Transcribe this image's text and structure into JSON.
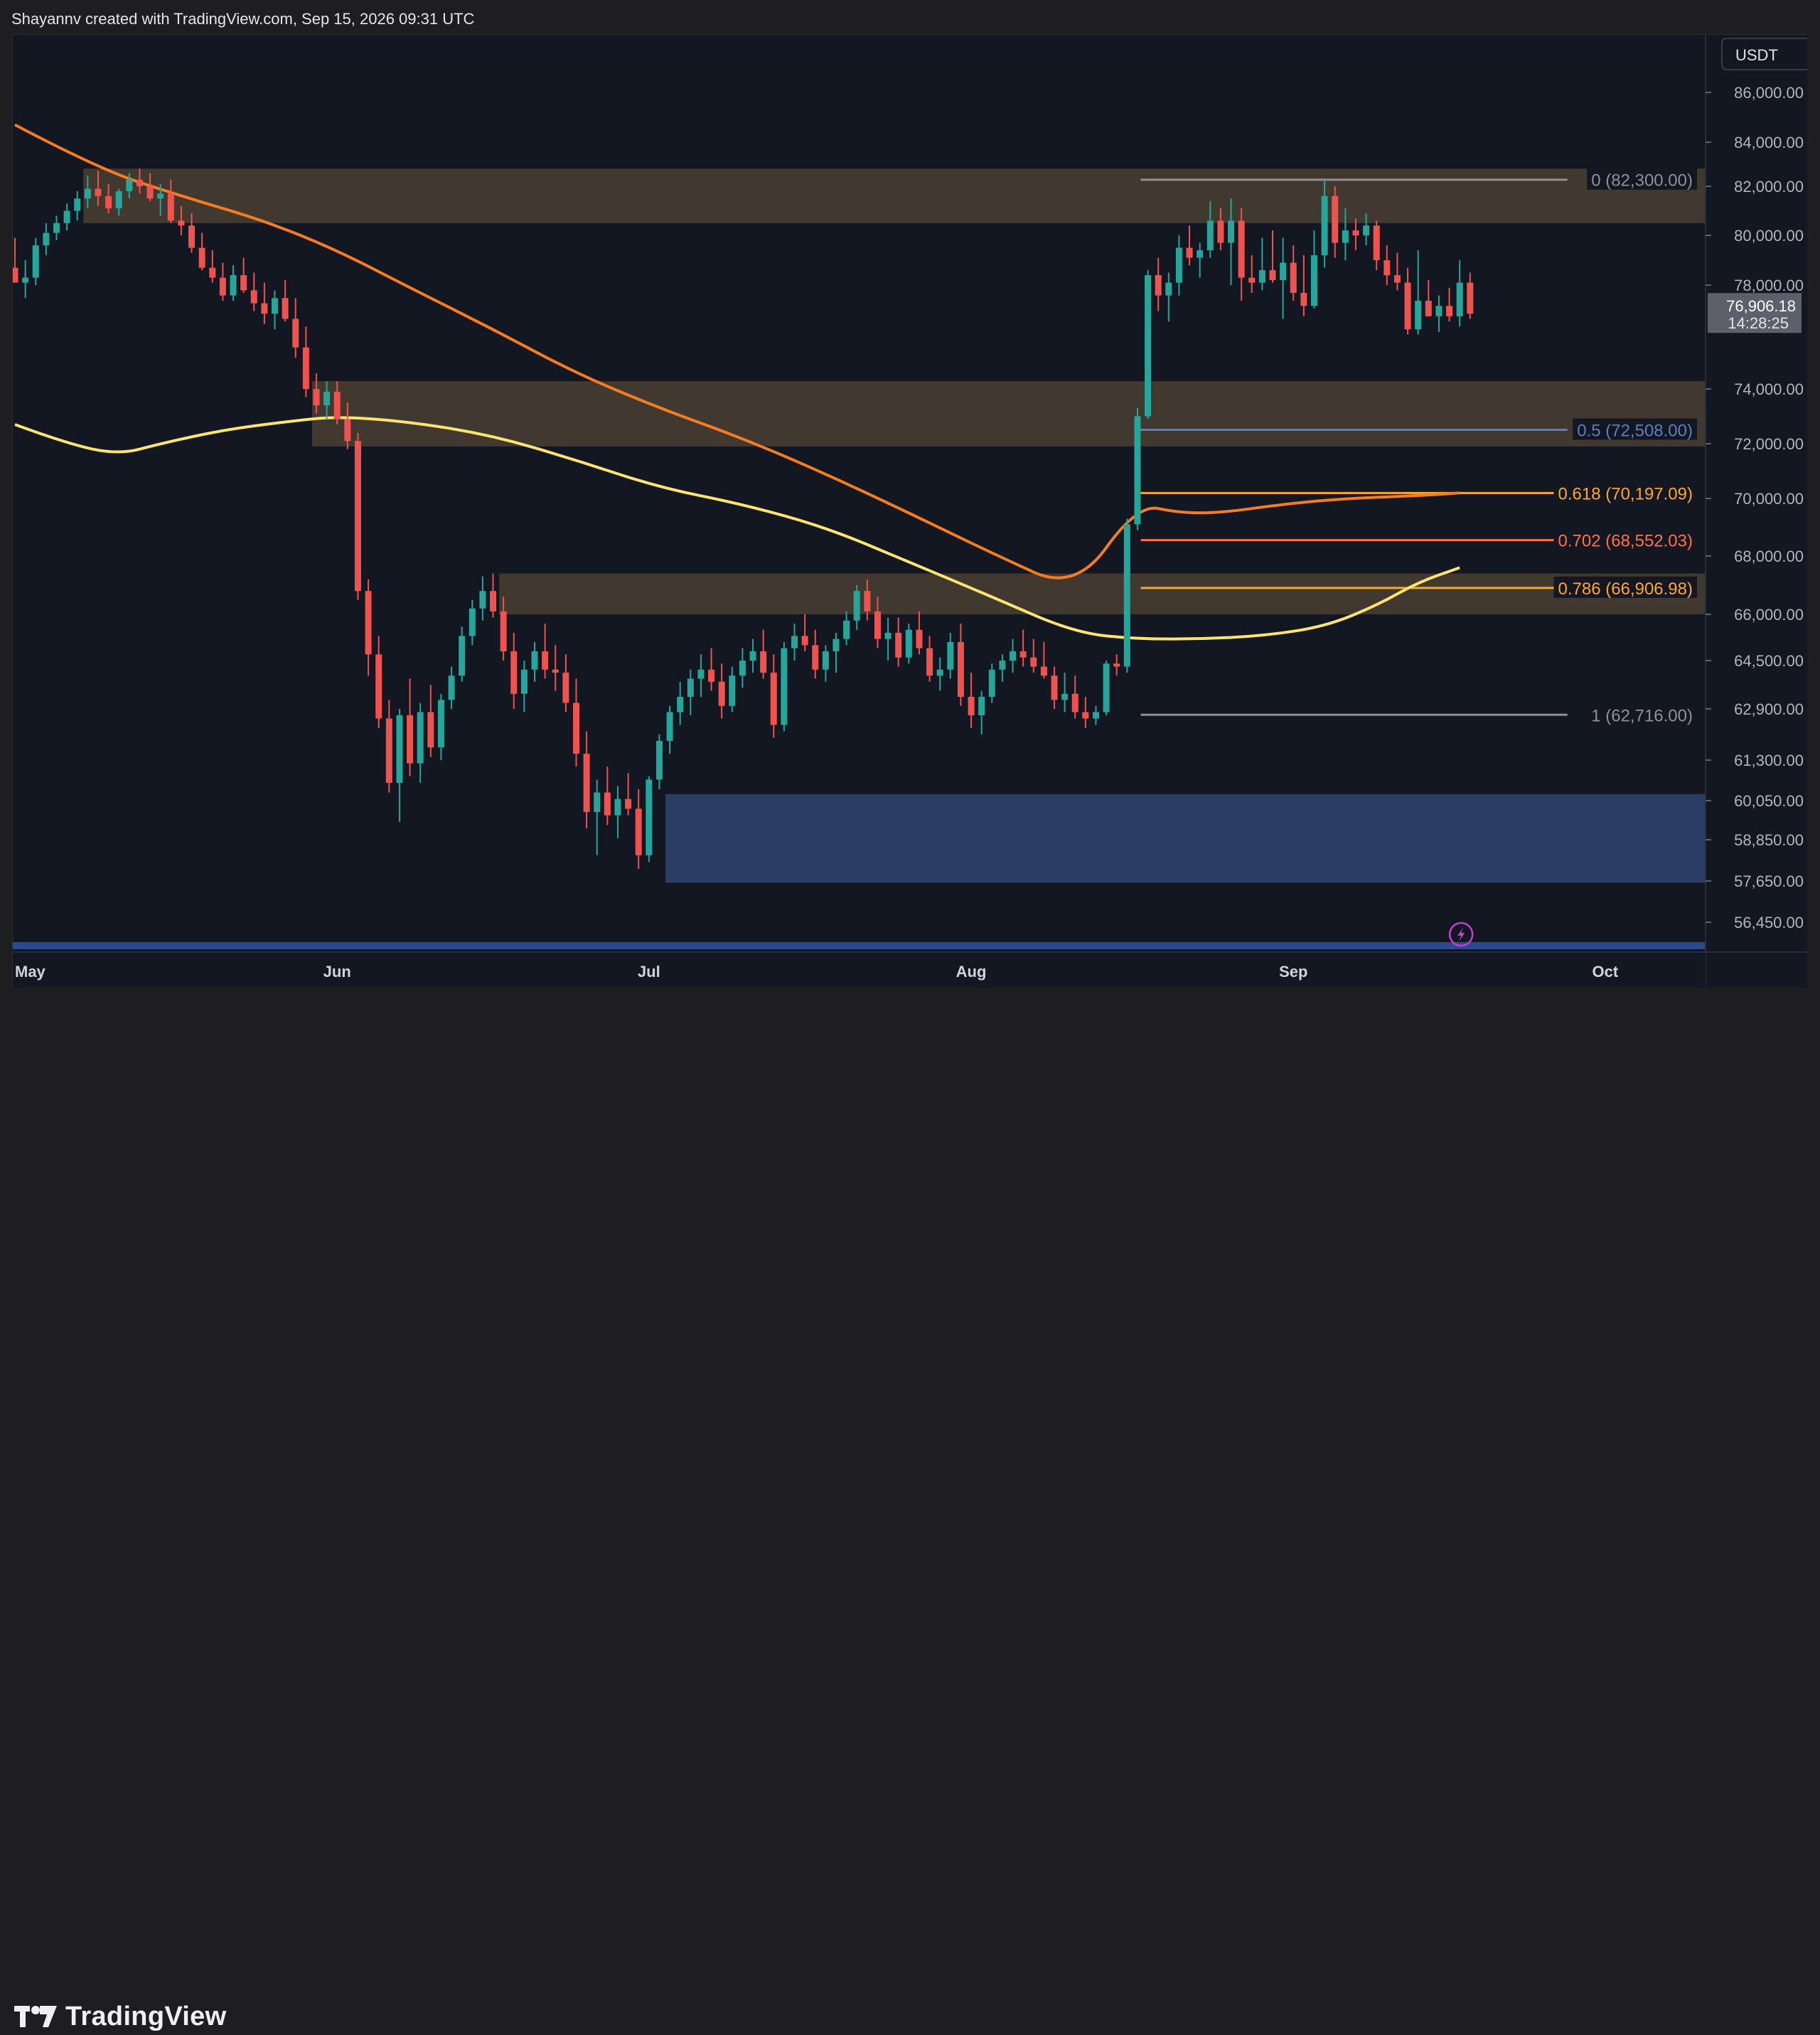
{
  "header": {
    "attribution": "Shayannv created with TradingView.com, Sep 15, 2026 09:31 UTC"
  },
  "footer": {
    "brand": "TradingView",
    "logo_icon": "tradingview-logo-icon"
  },
  "colors": {
    "background": "#131722",
    "page": "#1e1e20",
    "bull": "#26a69a",
    "bear": "#ef5350",
    "zone_supply": "#4a3f33",
    "zone_demand": "#2b3f66",
    "ema_orange": "#f57c1f",
    "ma_yellow": "#ffe470",
    "fib_grey": "#8f9099",
    "fib_blue": "#5b7fbe",
    "fib_orange": "#ffa726",
    "fib_deep_orange": "#ff7043",
    "accent_purple": "#c040d0"
  },
  "chart_data": {
    "type": "candlestick",
    "currency": "USDT",
    "last_price": "76,906.18",
    "countdown": "14:28:25",
    "y_ticks": [
      {
        "label": "86,000.00",
        "v": 86000
      },
      {
        "label": "84,000.00",
        "v": 84000
      },
      {
        "label": "82,000.00",
        "v": 82000
      },
      {
        "label": "80,000.00",
        "v": 80000
      },
      {
        "label": "78,000.00",
        "v": 78000
      },
      {
        "label": "74,000.00",
        "v": 74000
      },
      {
        "label": "72,000.00",
        "v": 72000
      },
      {
        "label": "70,000.00",
        "v": 70000
      },
      {
        "label": "68,000.00",
        "v": 68000
      },
      {
        "label": "66,000.00",
        "v": 66000
      },
      {
        "label": "64,500.00",
        "v": 64500
      },
      {
        "label": "62,900.00",
        "v": 62900
      },
      {
        "label": "61,300.00",
        "v": 61300
      },
      {
        "label": "60,050.00",
        "v": 60050
      },
      {
        "label": "58,850.00",
        "v": 58850
      },
      {
        "label": "57,650.00",
        "v": 57650
      },
      {
        "label": "56,450.00",
        "v": 56450
      }
    ],
    "x_ticks": [
      {
        "label": "May",
        "day": 0
      },
      {
        "label": "Jun",
        "day": 31
      },
      {
        "label": "Jul",
        "day": 61
      },
      {
        "label": "Aug",
        "day": 92
      },
      {
        "label": "Sep",
        "day": 123
      },
      {
        "label": "Oct",
        "day": 153
      }
    ],
    "zones": [
      {
        "name": "supply-zone-top",
        "x0": 7,
        "x1": 162,
        "y0": 80500,
        "y1": 82800,
        "kind": "supply"
      },
      {
        "name": "supply-zone-mid",
        "x0": 29,
        "x1": 162,
        "y0": 71900,
        "y1": 74300,
        "kind": "supply"
      },
      {
        "name": "supply-zone-low",
        "x0": 47,
        "x1": 162,
        "y0": 66000,
        "y1": 67400,
        "kind": "supply"
      },
      {
        "name": "demand-zone",
        "x0": 63,
        "x1": 162,
        "y0": 57600,
        "y1": 60250,
        "kind": "demand"
      }
    ],
    "fib_levels": [
      {
        "label": "0 (82,300.00)",
        "v": 82300,
        "color": "#8f9099"
      },
      {
        "label": "0.5 (72,508.00)",
        "v": 72508,
        "color": "#5b7fbe"
      },
      {
        "label": "0.618 (70,197.09)",
        "v": 70197,
        "color": "#ffa726"
      },
      {
        "label": "0.702 (68,552.03)",
        "v": 68552,
        "color": "#ff7043"
      },
      {
        "label": "0.786 (66,906.98)",
        "v": 66907,
        "color": "#ffa726"
      },
      {
        "label": "1 (62,716.00)",
        "v": 62716,
        "color": "#8f9099"
      }
    ],
    "fib_range": {
      "x0": 109,
      "x1": 148
    },
    "ma_orange": [
      [
        0,
        84700
      ],
      [
        8,
        82800
      ],
      [
        16,
        81600
      ],
      [
        24,
        80600
      ],
      [
        31,
        79400
      ],
      [
        38,
        77900
      ],
      [
        46,
        76300
      ],
      [
        54,
        74600
      ],
      [
        62,
        73300
      ],
      [
        70,
        72200
      ],
      [
        78,
        70900
      ],
      [
        86,
        69500
      ],
      [
        94,
        68100
      ],
      [
        102,
        66800
      ],
      [
        108,
        69800
      ],
      [
        112,
        69500
      ],
      [
        116,
        69500
      ],
      [
        122,
        69800
      ],
      [
        128,
        70000
      ],
      [
        135,
        70100
      ],
      [
        139,
        70200
      ]
    ],
    "ma_yellow": [
      [
        0,
        72700
      ],
      [
        5,
        72000
      ],
      [
        10,
        71600
      ],
      [
        14,
        72000
      ],
      [
        20,
        72500
      ],
      [
        26,
        72800
      ],
      [
        31,
        73000
      ],
      [
        38,
        72800
      ],
      [
        46,
        72300
      ],
      [
        54,
        71400
      ],
      [
        62,
        70400
      ],
      [
        70,
        69800
      ],
      [
        78,
        69000
      ],
      [
        86,
        67800
      ],
      [
        94,
        66600
      ],
      [
        102,
        65400
      ],
      [
        108,
        65200
      ],
      [
        114,
        65200
      ],
      [
        120,
        65300
      ],
      [
        126,
        65600
      ],
      [
        131,
        66300
      ],
      [
        135,
        67100
      ],
      [
        139,
        67600
      ]
    ],
    "candles": [
      [
        0,
        78700,
        79900,
        78300,
        78100
      ],
      [
        1,
        78100,
        79000,
        77500,
        78300
      ],
      [
        2,
        78300,
        79900,
        78000,
        79600
      ],
      [
        3,
        79600,
        80500,
        79200,
        80100
      ],
      [
        4,
        80100,
        80800,
        79800,
        80500
      ],
      [
        5,
        80500,
        81300,
        80200,
        81000
      ],
      [
        6,
        81000,
        81800,
        80600,
        81500
      ],
      [
        7,
        81500,
        82500,
        81100,
        81900
      ],
      [
        8,
        81900,
        82700,
        81200,
        81600
      ],
      [
        9,
        81600,
        82100,
        80900,
        81100
      ],
      [
        10,
        81100,
        81900,
        80800,
        81800
      ],
      [
        11,
        81800,
        82600,
        81500,
        82300
      ],
      [
        12,
        82300,
        82800,
        81700,
        82000
      ],
      [
        13,
        82000,
        82600,
        81400,
        81500
      ],
      [
        14,
        81500,
        82100,
        80800,
        81700
      ],
      [
        15,
        81700,
        82300,
        80500,
        80600
      ],
      [
        16,
        80600,
        81200,
        80000,
        80400
      ],
      [
        17,
        80400,
        80900,
        79300,
        79500
      ],
      [
        18,
        79500,
        80100,
        78600,
        78700
      ],
      [
        19,
        78700,
        79400,
        78100,
        78300
      ],
      [
        20,
        78300,
        78900,
        77400,
        77600
      ],
      [
        21,
        77600,
        78800,
        77400,
        78400
      ],
      [
        22,
        78400,
        79100,
        77700,
        77800
      ],
      [
        23,
        77800,
        78500,
        77000,
        77300
      ],
      [
        24,
        77300,
        78100,
        76500,
        76900
      ],
      [
        25,
        76900,
        77800,
        76300,
        77500
      ],
      [
        26,
        77500,
        78200,
        76600,
        76700
      ],
      [
        27,
        76700,
        77500,
        75200,
        75600
      ],
      [
        28,
        75600,
        76400,
        73700,
        74000
      ],
      [
        29,
        74000,
        74600,
        73100,
        73400
      ],
      [
        30,
        73400,
        74300,
        72900,
        73900
      ],
      [
        31,
        73900,
        74300,
        72700,
        72900
      ],
      [
        32,
        72900,
        73500,
        71800,
        72100
      ],
      [
        33,
        72100,
        72400,
        66500,
        66800
      ],
      [
        34,
        66800,
        67200,
        64000,
        64700
      ],
      [
        35,
        64700,
        65300,
        62300,
        62600
      ],
      [
        36,
        62600,
        63200,
        60300,
        60600
      ],
      [
        37,
        60600,
        62900,
        59400,
        62700
      ],
      [
        38,
        62700,
        63900,
        60800,
        61200
      ],
      [
        39,
        61200,
        63100,
        60600,
        62800
      ],
      [
        40,
        62800,
        63700,
        61400,
        61700
      ],
      [
        41,
        61700,
        63400,
        61300,
        63200
      ],
      [
        42,
        63200,
        64300,
        62900,
        64000
      ],
      [
        43,
        64000,
        65600,
        63800,
        65300
      ],
      [
        44,
        65300,
        66500,
        65000,
        66200
      ],
      [
        45,
        66200,
        67300,
        65800,
        66800
      ],
      [
        46,
        66800,
        67400,
        65900,
        66100
      ],
      [
        47,
        66100,
        66600,
        64500,
        64800
      ],
      [
        48,
        64800,
        65400,
        62900,
        63400
      ],
      [
        49,
        63400,
        64500,
        62800,
        64200
      ],
      [
        50,
        64200,
        65100,
        63800,
        64800
      ],
      [
        51,
        64800,
        65700,
        63900,
        64200
      ],
      [
        52,
        64200,
        65000,
        63500,
        64100
      ],
      [
        53,
        64100,
        64700,
        62800,
        63100
      ],
      [
        54,
        63100,
        63900,
        61100,
        61500
      ],
      [
        55,
        61500,
        62200,
        59200,
        59700
      ],
      [
        56,
        59700,
        60700,
        58400,
        60300
      ],
      [
        57,
        60300,
        61100,
        59300,
        59600
      ],
      [
        58,
        59600,
        60500,
        58900,
        60100
      ],
      [
        59,
        60100,
        60900,
        59600,
        59800
      ],
      [
        60,
        59800,
        60400,
        58000,
        58400
      ],
      [
        61,
        58400,
        60800,
        58200,
        60700
      ],
      [
        62,
        60700,
        62100,
        60400,
        61900
      ],
      [
        63,
        61900,
        63000,
        61500,
        62800
      ],
      [
        64,
        62800,
        63800,
        62400,
        63300
      ],
      [
        65,
        63300,
        64200,
        62700,
        63900
      ],
      [
        66,
        63900,
        64700,
        63300,
        64200
      ],
      [
        67,
        64200,
        64900,
        63500,
        63800
      ],
      [
        68,
        63800,
        64400,
        62600,
        63000
      ],
      [
        69,
        63000,
        64300,
        62800,
        64000
      ],
      [
        70,
        64000,
        64900,
        63600,
        64500
      ],
      [
        71,
        64500,
        65200,
        64100,
        64800
      ],
      [
        72,
        64800,
        65500,
        63900,
        64100
      ],
      [
        73,
        64100,
        64700,
        62000,
        62400
      ],
      [
        74,
        62400,
        65100,
        62200,
        64900
      ],
      [
        75,
        64900,
        65700,
        64500,
        65300
      ],
      [
        76,
        65300,
        66000,
        64800,
        65000
      ],
      [
        77,
        65000,
        65500,
        63900,
        64200
      ],
      [
        78,
        64200,
        65000,
        63800,
        64800
      ],
      [
        79,
        64800,
        65400,
        64100,
        65200
      ],
      [
        80,
        65200,
        66100,
        65000,
        65800
      ],
      [
        81,
        65800,
        67000,
        65500,
        66800
      ],
      [
        82,
        66800,
        67200,
        65800,
        66100
      ],
      [
        83,
        66100,
        66600,
        64900,
        65200
      ],
      [
        84,
        65200,
        65900,
        64500,
        65400
      ],
      [
        85,
        65400,
        65900,
        64300,
        64600
      ],
      [
        86,
        64600,
        65700,
        64400,
        65500
      ],
      [
        87,
        65500,
        66100,
        64700,
        64900
      ],
      [
        88,
        64900,
        65300,
        63800,
        64000
      ],
      [
        89,
        64000,
        64600,
        63500,
        64200
      ],
      [
        90,
        64200,
        65400,
        63900,
        65100
      ],
      [
        91,
        65100,
        65700,
        63000,
        63300
      ],
      [
        92,
        63300,
        64100,
        62300,
        62700
      ],
      [
        93,
        62700,
        63500,
        62100,
        63300
      ],
      [
        94,
        63300,
        64400,
        63100,
        64200
      ],
      [
        95,
        64200,
        64700,
        63800,
        64500
      ],
      [
        96,
        64500,
        65200,
        64100,
        64800
      ],
      [
        97,
        64800,
        65500,
        64300,
        64600
      ],
      [
        98,
        64600,
        65200,
        64100,
        64300
      ],
      [
        99,
        64300,
        65100,
        63900,
        64000
      ],
      [
        100,
        64000,
        64300,
        62900,
        63200
      ],
      [
        101,
        63200,
        64100,
        62800,
        63400
      ],
      [
        102,
        63400,
        64000,
        62600,
        62800
      ],
      [
        103,
        62800,
        63300,
        62300,
        62600
      ],
      [
        104,
        62600,
        63000,
        62400,
        62800
      ],
      [
        105,
        62800,
        64500,
        62700,
        64400
      ],
      [
        106,
        64400,
        64700,
        64000,
        64300
      ],
      [
        107,
        64300,
        69300,
        64100,
        69100
      ],
      [
        108,
        69100,
        73300,
        68900,
        73000
      ],
      [
        109,
        73000,
        78600,
        72900,
        78400
      ],
      [
        110,
        78400,
        79100,
        77000,
        77600
      ],
      [
        111,
        77600,
        78500,
        76600,
        78100
      ],
      [
        112,
        78100,
        80000,
        77600,
        79500
      ],
      [
        113,
        79500,
        80400,
        78800,
        79100
      ],
      [
        114,
        79100,
        79700,
        78300,
        79400
      ],
      [
        115,
        79400,
        81400,
        79100,
        80600
      ],
      [
        116,
        80600,
        81100,
        79400,
        79700
      ],
      [
        117,
        79700,
        81500,
        78000,
        80600
      ],
      [
        118,
        80600,
        81100,
        77400,
        78300
      ],
      [
        119,
        78300,
        79200,
        77700,
        78100
      ],
      [
        120,
        78100,
        79900,
        77800,
        78600
      ],
      [
        121,
        78600,
        80200,
        78100,
        78200
      ],
      [
        122,
        78200,
        79900,
        76700,
        78900
      ],
      [
        123,
        78900,
        79600,
        77400,
        77700
      ],
      [
        124,
        77700,
        79200,
        76800,
        77200
      ],
      [
        125,
        77200,
        80200,
        77100,
        79200
      ],
      [
        126,
        79200,
        82300,
        78700,
        81600
      ],
      [
        127,
        81600,
        82000,
        79100,
        79700
      ],
      [
        128,
        79700,
        81100,
        79000,
        80200
      ],
      [
        129,
        80200,
        80700,
        79400,
        80000
      ],
      [
        130,
        80000,
        80900,
        79600,
        80400
      ],
      [
        131,
        80400,
        80600,
        78600,
        79000
      ],
      [
        132,
        79000,
        79600,
        78000,
        78400
      ],
      [
        133,
        78400,
        79300,
        77800,
        78100
      ],
      [
        134,
        78100,
        78700,
        76100,
        76300
      ],
      [
        135,
        76300,
        79400,
        76100,
        77400
      ],
      [
        136,
        77400,
        78200,
        76800,
        76800
      ],
      [
        137,
        76800,
        77600,
        76200,
        77200
      ],
      [
        138,
        77200,
        77900,
        76600,
        76800
      ],
      [
        139,
        76800,
        79000,
        76400,
        78100
      ],
      [
        140,
        78100,
        78500,
        76700,
        76900
      ]
    ]
  }
}
